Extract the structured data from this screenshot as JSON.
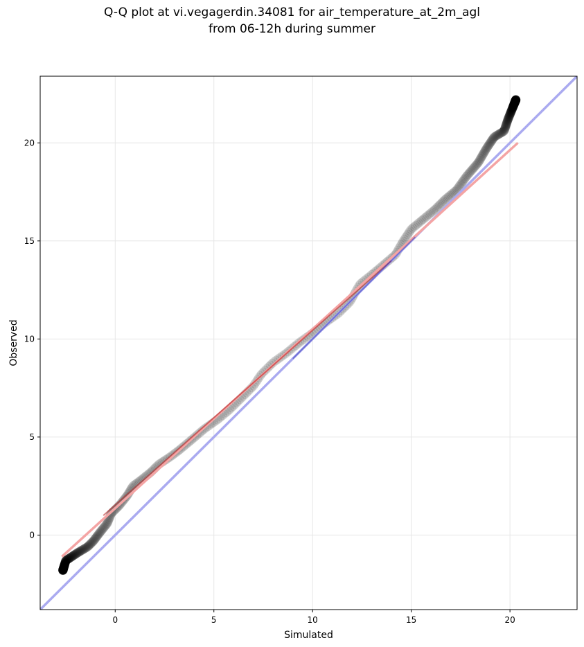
{
  "chart_data": {
    "type": "scatter",
    "title_line1": "Q-Q plot at vi.vegagerdin.34081 for air_temperature_at_2m_agl",
    "title_line2": "from 06-12h during summer",
    "xlabel": "Simulated",
    "ylabel": "Observed",
    "xlim": [
      -3.8,
      23.4
    ],
    "ylim": [
      -3.8,
      23.4
    ],
    "xticks": [
      0,
      5,
      10,
      15,
      20
    ],
    "yticks": [
      0,
      5,
      10,
      15,
      20
    ],
    "grid": true,
    "quantile_anchors": [
      [
        -2.65,
        -1.8
      ],
      [
        -2.5,
        -1.3
      ],
      [
        -2.2,
        -1.1
      ],
      [
        -1.9,
        -0.9
      ],
      [
        -1.4,
        -0.6
      ],
      [
        -1.1,
        -0.3
      ],
      [
        -0.8,
        0.1
      ],
      [
        -0.4,
        0.6
      ],
      [
        -0.2,
        1.1
      ],
      [
        0.2,
        1.5
      ],
      [
        0.6,
        2.0
      ],
      [
        0.9,
        2.5
      ],
      [
        1.3,
        2.8
      ],
      [
        1.8,
        3.2
      ],
      [
        2.2,
        3.6
      ],
      [
        2.8,
        4.0
      ],
      [
        3.2,
        4.3
      ],
      [
        3.8,
        4.8
      ],
      [
        4.5,
        5.4
      ],
      [
        5.2,
        5.9
      ],
      [
        5.8,
        6.4
      ],
      [
        6.3,
        6.9
      ],
      [
        7.0,
        7.6
      ],
      [
        7.4,
        8.2
      ],
      [
        8.0,
        8.8
      ],
      [
        8.7,
        9.3
      ],
      [
        9.3,
        9.8
      ],
      [
        10.0,
        10.3
      ],
      [
        10.6,
        10.8
      ],
      [
        11.3,
        11.3
      ],
      [
        11.9,
        11.9
      ],
      [
        12.4,
        12.8
      ],
      [
        12.9,
        13.2
      ],
      [
        13.5,
        13.7
      ],
      [
        14.2,
        14.3
      ],
      [
        14.6,
        15.0
      ],
      [
        15.0,
        15.6
      ],
      [
        15.6,
        16.1
      ],
      [
        16.2,
        16.6
      ],
      [
        16.7,
        17.1
      ],
      [
        17.3,
        17.6
      ],
      [
        17.8,
        18.3
      ],
      [
        18.4,
        19.0
      ],
      [
        18.8,
        19.7
      ],
      [
        19.2,
        20.3
      ],
      [
        19.7,
        20.6
      ],
      [
        19.9,
        21.2
      ],
      [
        20.3,
        22.2
      ]
    ],
    "n_points": 640,
    "point_color": "#000000",
    "identity_line": {
      "from": [
        -3.8,
        -3.8
      ],
      "to": [
        23.4,
        23.4
      ],
      "color": "#aaaaf0"
    },
    "fit_line": {
      "from": [
        -2.7,
        -1.1
      ],
      "to": [
        20.4,
        20.0
      ],
      "color": "#f4a4a4"
    },
    "fit_line_core": {
      "from": [
        -0.6,
        1.0
      ],
      "to": [
        14.0,
        14.0
      ],
      "color": "#b41e1e"
    },
    "identity_line_core": {
      "from": [
        9.0,
        9.0
      ],
      "to": [
        15.2,
        15.2
      ],
      "color": "#2a2ab4"
    }
  }
}
